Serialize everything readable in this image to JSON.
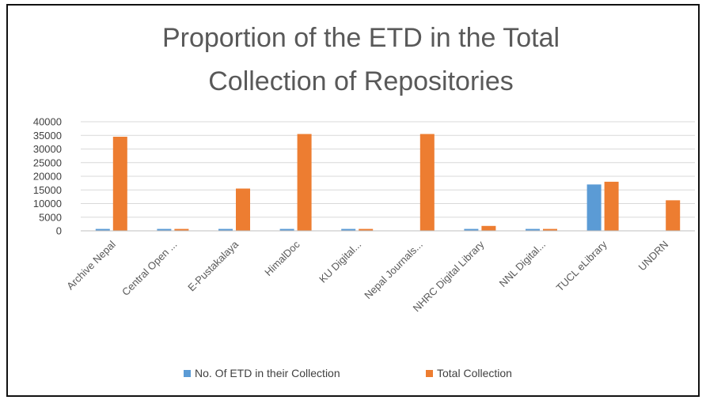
{
  "chart_data": {
    "type": "bar",
    "title": "Proportion of the ETD in the Total Collection of Repositories",
    "title_lines": [
      "Proportion of the ETD in the Total",
      "Collection of Repositories"
    ],
    "xlabel": "",
    "ylabel": "",
    "ylim": [
      0,
      40000
    ],
    "yticks": [
      "40000",
      "35000",
      "30000",
      "25000",
      "20000",
      "15000",
      "10000",
      "5000",
      "0"
    ],
    "grid": true,
    "legend_position": "bottom",
    "categories": [
      "Archive Nepal",
      "Central Open ...",
      "E-Pustakalaya",
      "HimalDoc",
      "KU Digital...",
      "Nepal Journals...",
      "NHRC Digital Library",
      "NNL Digital...",
      "TUCL eLibrary",
      "UNDRN"
    ],
    "series": [
      {
        "name": "No. Of ETD in their  Collection",
        "color": "#5B9BD5",
        "values": [
          700,
          700,
          700,
          700,
          700,
          0,
          700,
          700,
          17000,
          0
        ]
      },
      {
        "name": "Total Collection",
        "color": "#ED7D31",
        "values": [
          34500,
          700,
          15500,
          35500,
          700,
          35500,
          1800,
          700,
          18000,
          11200
        ]
      }
    ]
  }
}
